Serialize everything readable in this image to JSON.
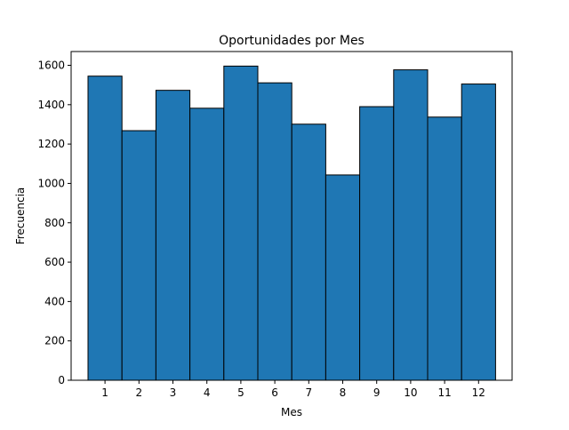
{
  "chart_data": {
    "type": "bar",
    "title": "Oportunidades por Mes",
    "xlabel": "Mes",
    "ylabel": "Frecuencia",
    "categories": [
      "1",
      "2",
      "3",
      "4",
      "5",
      "6",
      "7",
      "8",
      "9",
      "10",
      "11",
      "12"
    ],
    "values": [
      1545,
      1268,
      1473,
      1382,
      1596,
      1511,
      1301,
      1043,
      1390,
      1577,
      1337,
      1505
    ],
    "ylim": [
      0,
      1670
    ],
    "yticks": [
      0,
      200,
      400,
      600,
      800,
      1000,
      1200,
      1400,
      1600
    ],
    "grid": false,
    "legend": "none",
    "colors": {
      "bar_fill": "#1f77b4",
      "bar_edge": "#000000",
      "axis": "#000000",
      "background": "#ffffff"
    }
  }
}
